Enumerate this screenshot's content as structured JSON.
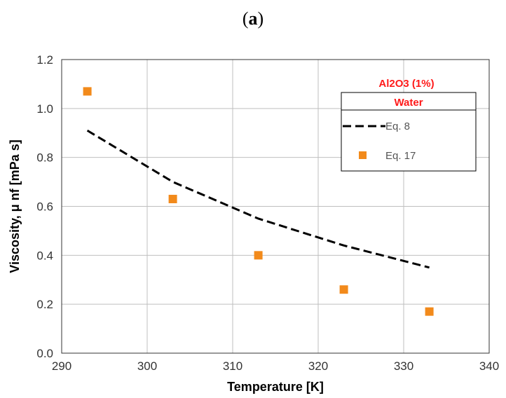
{
  "figure_label": {
    "open": "(",
    "letter": "a",
    "close": ")"
  },
  "chart_data": {
    "type": "line",
    "xlabel": "Temperature [K]",
    "ylabel": "Viscosity, μ nf [mPa s]",
    "xlim": [
      290,
      340
    ],
    "ylim": [
      0.0,
      1.2
    ],
    "xticks": [
      "290",
      "300",
      "310",
      "320",
      "330",
      "340"
    ],
    "yticks": [
      "0.0",
      "0.2",
      "0.4",
      "0.6",
      "0.8",
      "1.0",
      "1.2"
    ],
    "grid": true,
    "legend_position": "top-right",
    "legend_title_lines": [
      "Al2O3 (1%)",
      "Water"
    ],
    "series": [
      {
        "name": "Eq. 8",
        "style": "dashed-line",
        "color": "#000000",
        "x": [
          293,
          303,
          313,
          323,
          333
        ],
        "y": [
          0.91,
          0.7,
          0.55,
          0.44,
          0.35
        ]
      },
      {
        "name": "Eq. 17",
        "style": "square-markers",
        "color": "#f28a1b",
        "x": [
          293,
          303,
          313,
          323,
          333
        ],
        "y": [
          1.07,
          0.63,
          0.4,
          0.26,
          0.17
        ]
      }
    ]
  }
}
